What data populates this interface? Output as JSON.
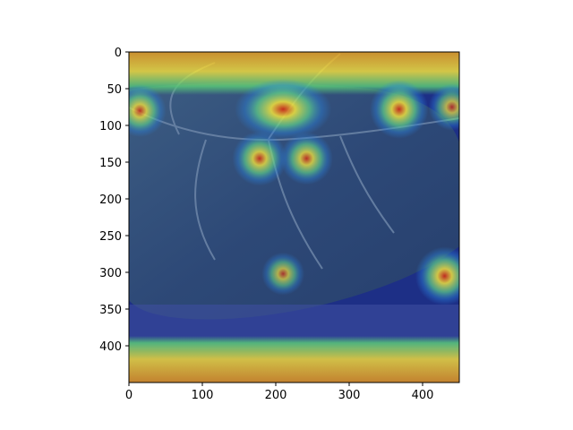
{
  "chart_data": {
    "type": "heatmap",
    "title": "",
    "xlabel": "",
    "ylabel": "",
    "xlim": [
      0,
      450
    ],
    "ylim": [
      450,
      0
    ],
    "y_inverted": true,
    "xticks": [
      0,
      100,
      200,
      300,
      400
    ],
    "yticks": [
      0,
      50,
      100,
      150,
      200,
      250,
      300,
      350,
      400
    ],
    "x_tick_labels": [
      "0",
      "100",
      "200",
      "300",
      "400"
    ],
    "y_tick_labels": [
      "0",
      "50",
      "100",
      "150",
      "200",
      "250",
      "300",
      "350",
      "400"
    ],
    "grid": false,
    "legend": "none",
    "colormap": "jet",
    "background": "leaf photograph overlaid with attention heatmap",
    "hotspots": [
      {
        "x": 15,
        "y": 80,
        "intensity": 0.7
      },
      {
        "x": 210,
        "y": 78,
        "intensity": 0.9
      },
      {
        "x": 368,
        "y": 78,
        "intensity": 0.85
      },
      {
        "x": 440,
        "y": 75,
        "intensity": 0.55
      },
      {
        "x": 178,
        "y": 145,
        "intensity": 0.75
      },
      {
        "x": 242,
        "y": 145,
        "intensity": 0.7
      },
      {
        "x": 210,
        "y": 302,
        "intensity": 0.45
      },
      {
        "x": 430,
        "y": 305,
        "intensity": 0.85
      }
    ],
    "bands": [
      {
        "y_from": 0,
        "y_to": 35,
        "intensity": 0.9
      },
      {
        "y_from": 385,
        "y_to": 450,
        "intensity": 0.95
      }
    ],
    "colors": {
      "low": "#1a2a8a",
      "mid": "#58c878",
      "high": "#f0e040",
      "peak": "#d02020"
    }
  }
}
